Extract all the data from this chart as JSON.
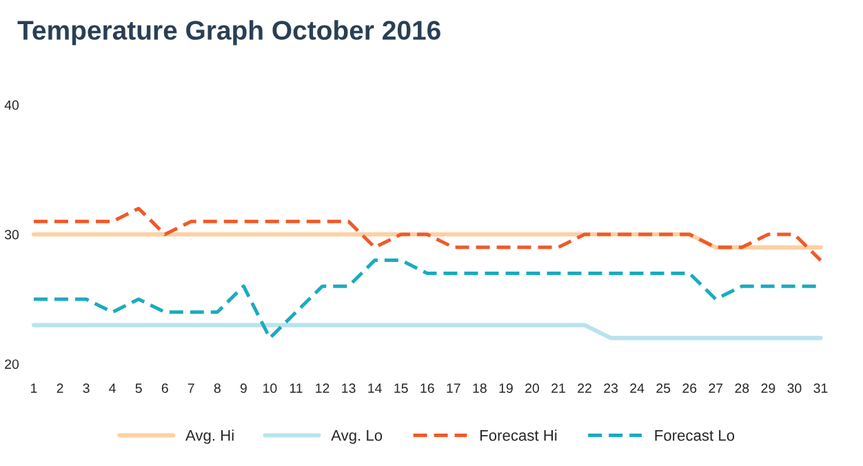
{
  "chart_data": {
    "type": "line",
    "title": "Temperature Graph October 2016",
    "categories": [
      "1",
      "2",
      "3",
      "4",
      "5",
      "6",
      "7",
      "8",
      "9",
      "10",
      "11",
      "12",
      "13",
      "14",
      "15",
      "16",
      "17",
      "18",
      "19",
      "20",
      "21",
      "22",
      "23",
      "24",
      "25",
      "26",
      "27",
      "28",
      "29",
      "30",
      "31"
    ],
    "series": [
      {
        "name": "Avg. Hi",
        "color": "#fdd0a2",
        "line_style": "solid",
        "values": [
          30,
          30,
          30,
          30,
          30,
          30,
          30,
          30,
          30,
          30,
          30,
          30,
          30,
          30,
          30,
          30,
          30,
          30,
          30,
          30,
          30,
          30,
          30,
          30,
          30,
          30,
          29,
          29,
          29,
          29,
          29
        ]
      },
      {
        "name": "Avg. Lo",
        "color": "#b9e3ec",
        "line_style": "solid",
        "values": [
          23,
          23,
          23,
          23,
          23,
          23,
          23,
          23,
          23,
          23,
          23,
          23,
          23,
          23,
          23,
          23,
          23,
          23,
          23,
          23,
          23,
          23,
          22,
          22,
          22,
          22,
          22,
          22,
          22,
          22,
          22
        ]
      },
      {
        "name": "Forecast Hi",
        "color": "#f05a28",
        "line_style": "dashed",
        "values": [
          31,
          31,
          31,
          31,
          32,
          30,
          31,
          31,
          31,
          31,
          31,
          31,
          31,
          29,
          30,
          30,
          29,
          29,
          29,
          29,
          29,
          30,
          30,
          30,
          30,
          30,
          29,
          29,
          30,
          30,
          28
        ]
      },
      {
        "name": "Forecast Lo",
        "color": "#1aabbf",
        "line_style": "dashed",
        "values": [
          25,
          25,
          25,
          24,
          25,
          24,
          24,
          24,
          26,
          22,
          24,
          26,
          26,
          28,
          28,
          27,
          27,
          27,
          27,
          27,
          27,
          27,
          27,
          27,
          27,
          27,
          25,
          26,
          26,
          26,
          26
        ]
      }
    ],
    "ylim": [
      20,
      40
    ],
    "yticks": [
      20,
      30,
      40
    ],
    "grid": false,
    "legend": "bottom"
  }
}
